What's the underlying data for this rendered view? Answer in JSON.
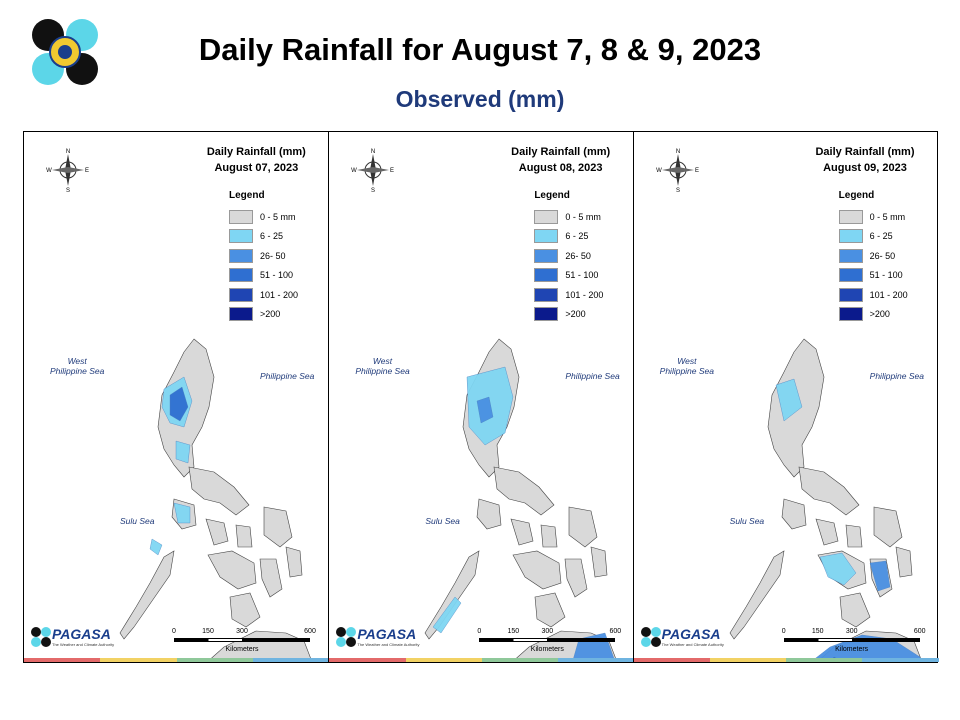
{
  "header": {
    "title": "Daily Rainfall for August 7, 8 & 9, 2023",
    "subtitle": "Observed (mm)"
  },
  "legend": {
    "title": "Legend",
    "items": [
      {
        "label": "0 - 5 mm",
        "color": "#d9d9d9"
      },
      {
        "label": "6 - 25",
        "color": "#7fd6f3"
      },
      {
        "label": "26- 50",
        "color": "#4a90e2"
      },
      {
        "label": "51 - 100",
        "color": "#2f6fd1"
      },
      {
        "label": "101 - 200",
        "color": "#1f45b3"
      },
      {
        "label": ">200",
        "color": "#0b1a8c"
      }
    ]
  },
  "seas": {
    "west": "West\nPhilippine Sea",
    "east": "Philippine Sea",
    "sulu": "Sulu Sea"
  },
  "compass": {
    "n": "N",
    "s": "S",
    "e": "E",
    "w": "W"
  },
  "scale": {
    "ticks": [
      "0",
      "150",
      "300",
      "600"
    ],
    "unit": "Kilometers"
  },
  "branding": {
    "name": "PAGASA",
    "small": "DOST",
    "tagline": "The Weather and Climate Authority"
  },
  "stripe_colors": [
    "#e36a6a",
    "#f2d264",
    "#8fc89a",
    "#6fb4e0"
  ],
  "panels": [
    {
      "map_title": "Daily Rainfall (mm)",
      "date": "August 07, 2023",
      "rain_zones": [
        {
          "region": "Ilocos / Cordillera",
          "class": "51 - 100"
        },
        {
          "region": "Central Luzon",
          "class": "6 - 25"
        },
        {
          "region": "Mindoro",
          "class": "6 - 25"
        },
        {
          "region": "Palawan north",
          "class": "6 - 25"
        },
        {
          "region": "Zamboanga / Soccsksargen",
          "class": "6 - 25"
        }
      ]
    },
    {
      "map_title": "Daily Rainfall (mm)",
      "date": "August 08, 2023",
      "rain_zones": [
        {
          "region": "Northern Luzon",
          "class": "26- 50"
        },
        {
          "region": "Palawan",
          "class": "6 - 25"
        },
        {
          "region": "Eastern Mindanao",
          "class": "26- 50"
        }
      ]
    },
    {
      "map_title": "Daily Rainfall (mm)",
      "date": "August 09, 2023",
      "rain_zones": [
        {
          "region": "Northern Luzon",
          "class": "6 - 25"
        },
        {
          "region": "Visayas",
          "class": "6 - 25"
        },
        {
          "region": "Western / Southern Mindanao",
          "class": "51 - 100"
        }
      ]
    }
  ]
}
